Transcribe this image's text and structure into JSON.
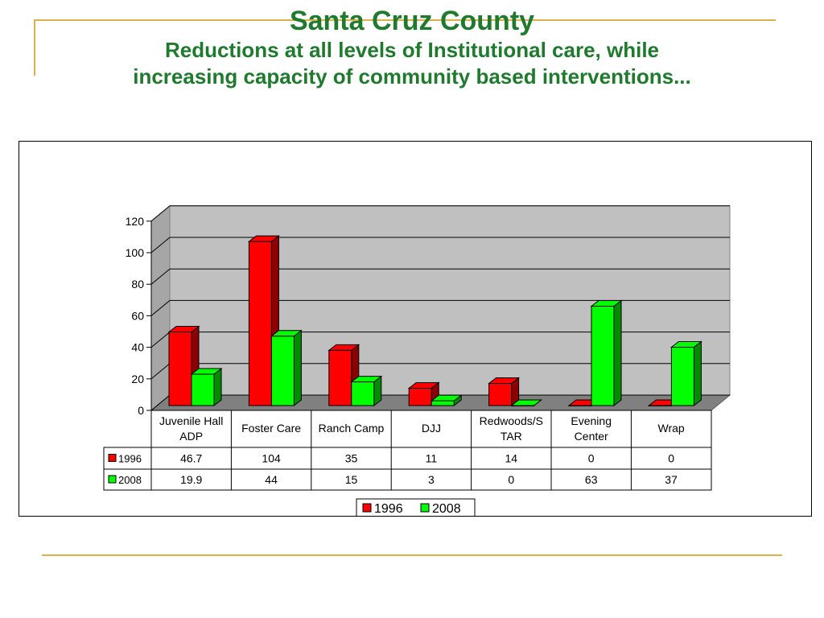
{
  "slide": {
    "title": "Santa Cruz County",
    "subtitle_line1": "Reductions at all levels of Institutional care, while",
    "subtitle_line2": "increasing capacity of community based interventions..."
  },
  "colors": {
    "title": "#1f7a2e",
    "series_1996": "#ff0000",
    "series_2008": "#00ff00",
    "wall": "#c0c0c0",
    "accent_line": "#dcb04a"
  },
  "chart_data": {
    "type": "bar",
    "categories": [
      "Juvenile Hall ADP",
      "Foster Care",
      "Ranch Camp",
      "DJJ",
      "Redwoods/STAR",
      "Evening Center",
      "Wrap"
    ],
    "category_lines": [
      [
        "Juvenile Hall",
        "ADP"
      ],
      [
        "Foster Care"
      ],
      [
        "Ranch Camp"
      ],
      [
        "DJJ"
      ],
      [
        "Redwoods/S",
        "TAR"
      ],
      [
        "Evening",
        "Center"
      ],
      [
        "Wrap"
      ]
    ],
    "series": [
      {
        "name": "1996",
        "values": [
          46.7,
          104,
          35,
          11,
          14,
          0,
          0
        ],
        "labels": [
          "46.7",
          "104",
          "35",
          "11",
          "14",
          "0",
          "0"
        ]
      },
      {
        "name": "2008",
        "values": [
          19.9,
          44,
          15,
          3,
          0,
          63,
          37
        ],
        "labels": [
          "19.9",
          "44",
          "15",
          "3",
          "0",
          "63",
          "37"
        ]
      }
    ],
    "ylim": [
      0,
      120
    ],
    "yticks": [
      "0",
      "20",
      "40",
      "60",
      "80",
      "100",
      "120"
    ],
    "grid": true,
    "data_table": true,
    "legend": "bottom"
  }
}
